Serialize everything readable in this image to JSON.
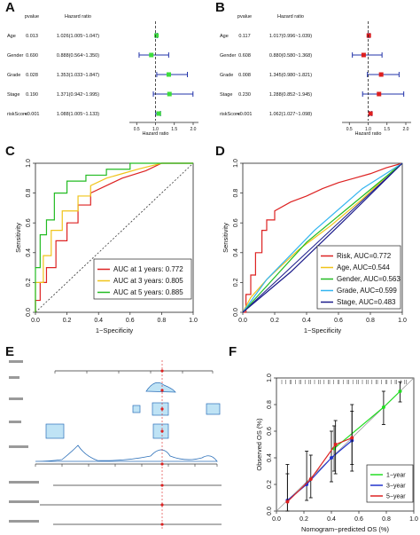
{
  "panel_letters": [
    "A",
    "B",
    "C",
    "D",
    "E",
    "F"
  ],
  "chart_data": [
    {
      "panel": "A",
      "type": "forest",
      "col_headers": [
        "pvalue",
        "Hazard ratio"
      ],
      "xlabel": "Hazard ratio",
      "xlim": [
        0.4,
        2.0
      ],
      "rows": [
        {
          "name": "Age",
          "pvalue": "0.013",
          "hr_text": "1.026(1.005~1.047)",
          "hr": 1.026,
          "lo": 1.005,
          "hi": 1.047
        },
        {
          "name": "Gender",
          "pvalue": "0.690",
          "hr_text": "0.888(0.564~1.350)",
          "hr": 0.888,
          "lo": 0.564,
          "hi": 1.35
        },
        {
          "name": "Grade",
          "pvalue": "0.028",
          "hr_text": "1.353(1.033~1.847)",
          "hr": 1.353,
          "lo": 1.033,
          "hi": 1.847
        },
        {
          "name": "Stage",
          "pvalue": "0.190",
          "hr_text": "1.371(0.942~1.995)",
          "hr": 1.371,
          "lo": 0.942,
          "hi": 1.995
        },
        {
          "name": "riskScore",
          "pvalue": "<0.001",
          "hr_text": "1.088(1.005~1.133)",
          "hr": 1.088,
          "lo": 1.005,
          "hi": 1.133
        }
      ],
      "marker_color": "#3ddc3d",
      "ci_color": "#2233aa"
    },
    {
      "panel": "B",
      "type": "forest",
      "col_headers": [
        "pvalue",
        "Hazard ratio"
      ],
      "xlabel": "Hazard ratio",
      "xlim": [
        0.4,
        2.0
      ],
      "rows": [
        {
          "name": "Age",
          "pvalue": "0.117",
          "hr_text": "1.017(0.996~1.039)",
          "hr": 1.017,
          "lo": 0.996,
          "hi": 1.039
        },
        {
          "name": "Gender",
          "pvalue": "0.608",
          "hr_text": "0.880(0.580~1.368)",
          "hr": 0.88,
          "lo": 0.58,
          "hi": 1.368
        },
        {
          "name": "Grade",
          "pvalue": "0.008",
          "hr_text": "1.345(0.980~1.821)",
          "hr": 1.345,
          "lo": 0.98,
          "hi": 1.821
        },
        {
          "name": "Stage",
          "pvalue": "0.230",
          "hr_text": "1.288(0.852~1.945)",
          "hr": 1.288,
          "lo": 0.852,
          "hi": 1.945
        },
        {
          "name": "riskScore",
          "pvalue": "<0.001",
          "hr_text": "1.062(1.027~1.098)",
          "hr": 1.062,
          "lo": 1.027,
          "hi": 1.098
        }
      ],
      "marker_color": "#dd1f1f",
      "ci_color": "#2233aa"
    },
    {
      "panel": "C",
      "type": "line",
      "xlabel": "1−Specificity",
      "ylabel": "Sensitivity",
      "xlim": [
        0,
        1
      ],
      "ylim": [
        0,
        1
      ],
      "ticks": [
        "0.0",
        "0.2",
        "0.4",
        "0.6",
        "0.8",
        "1.0"
      ],
      "legend_position": "bottom-right",
      "series": [
        {
          "name": "AUC at 1 years: 0.772",
          "color": "#dd2222",
          "x": [
            0,
            0.0,
            0.03,
            0.03,
            0.07,
            0.07,
            0.13,
            0.13,
            0.2,
            0.2,
            0.27,
            0.27,
            0.35,
            0.35,
            0.45,
            0.55,
            0.7,
            0.8,
            1.0
          ],
          "y": [
            0,
            0.08,
            0.08,
            0.2,
            0.2,
            0.3,
            0.3,
            0.48,
            0.48,
            0.6,
            0.6,
            0.72,
            0.72,
            0.8,
            0.85,
            0.9,
            0.95,
            1.0,
            1.0
          ]
        },
        {
          "name": "AUC at 3 years: 0.805",
          "color": "#f0c419",
          "x": [
            0,
            0.0,
            0.05,
            0.05,
            0.1,
            0.1,
            0.17,
            0.17,
            0.27,
            0.27,
            0.35,
            0.35,
            0.45,
            0.55,
            0.65,
            0.8,
            1.0
          ],
          "y": [
            0,
            0.2,
            0.2,
            0.38,
            0.38,
            0.55,
            0.55,
            0.68,
            0.68,
            0.78,
            0.78,
            0.85,
            0.9,
            0.93,
            0.96,
            1.0,
            1.0
          ]
        },
        {
          "name": "AUC at 5 years: 0.885",
          "color": "#22bb22",
          "x": [
            0,
            0.0,
            0.03,
            0.03,
            0.07,
            0.07,
            0.12,
            0.12,
            0.2,
            0.2,
            0.32,
            0.32,
            0.45,
            0.45,
            0.6,
            0.6,
            0.8,
            1.0
          ],
          "y": [
            0,
            0.3,
            0.3,
            0.52,
            0.52,
            0.62,
            0.62,
            0.8,
            0.8,
            0.88,
            0.88,
            0.92,
            0.92,
            0.96,
            0.96,
            1.0,
            1.0,
            1.0
          ]
        }
      ]
    },
    {
      "panel": "D",
      "type": "line",
      "xlabel": "1−Specificity",
      "ylabel": "Sensitivity",
      "xlim": [
        0,
        1
      ],
      "ylim": [
        0,
        1
      ],
      "ticks": [
        "0.0",
        "0.2",
        "0.4",
        "0.6",
        "0.8",
        "1.0"
      ],
      "legend_position": "bottom-right",
      "series": [
        {
          "name": "Risk, AUC=0.772",
          "color": "#dd2222",
          "x": [
            0,
            0.02,
            0.02,
            0.05,
            0.05,
            0.08,
            0.08,
            0.12,
            0.12,
            0.15,
            0.15,
            0.2,
            0.2,
            0.3,
            0.4,
            0.5,
            0.6,
            0.7,
            0.8,
            0.9,
            1.0
          ],
          "y": [
            0,
            0.0,
            0.12,
            0.12,
            0.25,
            0.25,
            0.4,
            0.4,
            0.55,
            0.55,
            0.62,
            0.62,
            0.68,
            0.74,
            0.78,
            0.83,
            0.87,
            0.9,
            0.93,
            0.97,
            1.0
          ]
        },
        {
          "name": "Age, AUC=0.544",
          "color": "#f0c419",
          "x": [
            0,
            0.05,
            0.15,
            0.25,
            0.35,
            0.45,
            0.55,
            0.65,
            0.75,
            0.85,
            0.95,
            1.0
          ],
          "y": [
            0,
            0.1,
            0.22,
            0.32,
            0.42,
            0.5,
            0.58,
            0.67,
            0.76,
            0.86,
            0.96,
            1.0
          ]
        },
        {
          "name": "Gender, AUC=0.563",
          "color": "#22bb22",
          "x": [
            0,
            0.4,
            1.0
          ],
          "y": [
            0,
            0.47,
            1.0
          ]
        },
        {
          "name": "Grade, AUC=0.599",
          "color": "#33b5f0",
          "x": [
            0,
            0.15,
            0.45,
            0.75,
            1.0
          ],
          "y": [
            0,
            0.22,
            0.55,
            0.83,
            1.0
          ]
        },
        {
          "name": "Stage, AUC=0.483",
          "color": "#1a1a8a",
          "x": [
            0,
            0.3,
            0.62,
            1.0
          ],
          "y": [
            0,
            0.27,
            0.6,
            1.0
          ]
        }
      ]
    },
    {
      "panel": "F",
      "type": "line",
      "xlabel": "Nomogram−predicted OS (%)",
      "ylabel": "Observed OS (%)",
      "xlim": [
        0,
        1
      ],
      "ylim": [
        0,
        1
      ],
      "ticks": [
        "0.0",
        "0.2",
        "0.4",
        "0.6",
        "0.8",
        "1.0"
      ],
      "legend_position": "bottom-right",
      "series": [
        {
          "name": "1−year",
          "color": "#22dd22",
          "x": [
            0.42,
            0.78,
            0.9
          ],
          "y": [
            0.47,
            0.78,
            0.9
          ],
          "err_lo": [
            0.3,
            0.65,
            0.82
          ],
          "err_hi": [
            0.64,
            0.9,
            0.97
          ]
        },
        {
          "name": "3−year",
          "color": "#2233cc",
          "x": [
            0.08,
            0.22,
            0.4,
            0.55
          ],
          "y": [
            0.08,
            0.2,
            0.4,
            0.53
          ],
          "err_lo": [
            0.0,
            0.08,
            0.22,
            0.3
          ],
          "err_hi": [
            0.35,
            0.45,
            0.6,
            0.75
          ]
        },
        {
          "name": "5−year",
          "color": "#dd2222",
          "x": [
            0.08,
            0.25,
            0.43,
            0.55
          ],
          "y": [
            0.07,
            0.24,
            0.5,
            0.55
          ],
          "err_lo": [
            0.0,
            0.1,
            0.28,
            0.35
          ],
          "err_hi": [
            0.28,
            0.42,
            0.68,
            0.8
          ]
        }
      ]
    }
  ]
}
